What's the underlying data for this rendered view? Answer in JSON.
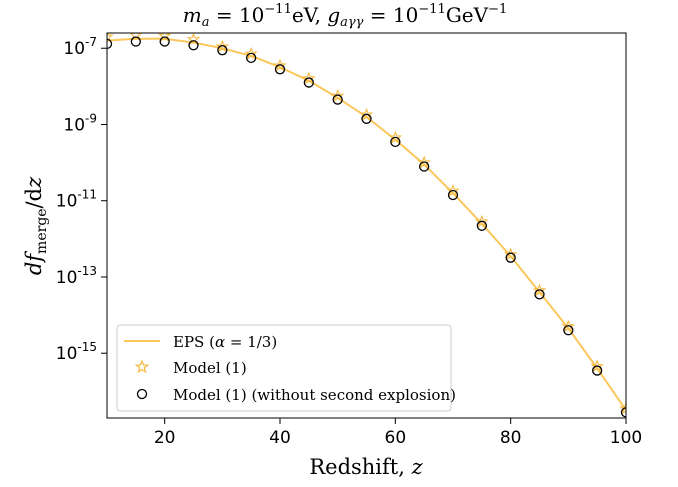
{
  "chart_data": {
    "type": "line",
    "title": "m_a = 10^{-11}eV, g_{aγγ} = 10^{-11}GeV^{-1}",
    "title_parts": {
      "mass_var": "m",
      "mass_sub": "a",
      "mass_eq": " = 10",
      "mass_exp": "−11",
      "mass_unit": "eV, ",
      "coupling_var": "g",
      "coupling_sub": "aγγ",
      "coupling_eq": " = 10",
      "coupling_exp": "−11",
      "coupling_unit": "GeV",
      "coupling_unit_exp": "−1"
    },
    "xlabel": "Redshift, z",
    "xlabel_parts": {
      "text": "Redshift, ",
      "var": "z"
    },
    "ylabel": "df_merge/dz",
    "ylabel_parts": {
      "d1": "d",
      "f": "f",
      "sub": "merge",
      "rest": "/d",
      "z": "z"
    },
    "xlim": [
      10,
      100
    ],
    "ylim_log10": [
      -16.7,
      -6.6
    ],
    "yscale": "log",
    "grid": false,
    "legend_position": "lower-left",
    "x_ticks": [
      {
        "value": 20,
        "label": "20"
      },
      {
        "value": 40,
        "label": "40"
      },
      {
        "value": 60,
        "label": "60"
      },
      {
        "value": 80,
        "label": "80"
      },
      {
        "value": 100,
        "label": "100"
      }
    ],
    "y_ticks": [
      {
        "exp": -7,
        "base": "10",
        "sup": "-7"
      },
      {
        "exp": -9,
        "base": "10",
        "sup": "-9"
      },
      {
        "exp": -11,
        "base": "10",
        "sup": "-11"
      },
      {
        "exp": -13,
        "base": "10",
        "sup": "-13"
      },
      {
        "exp": -15,
        "base": "10",
        "sup": "-15"
      }
    ],
    "colors": {
      "eps": "#fbc75b",
      "model": "#f5b940",
      "model_no_explosion": "#000000"
    },
    "series": [
      {
        "name": "EPS (α = 1/3)",
        "style": "line",
        "x": [
          10,
          15,
          20,
          25,
          30,
          35,
          40,
          45,
          50,
          55,
          60,
          65,
          70,
          75,
          80,
          85,
          90,
          95,
          100
        ],
        "y": [
          1.58e-07,
          1.78e-07,
          1.78e-07,
          1.41e-07,
          1e-07,
          6.3e-08,
          3.2e-08,
          1.41e-08,
          5e-09,
          1.58e-09,
          4e-10,
          8.9e-11,
          1.58e-11,
          2.5e-12,
          3.5e-13,
          4e-14,
          4.5e-15,
          4e-16,
          3.2e-17
        ]
      },
      {
        "name": "Model (1)",
        "style": "stars",
        "x": [
          10,
          15,
          20,
          25,
          30,
          35,
          40,
          45,
          50,
          55,
          60,
          65,
          70,
          75,
          80,
          85,
          90,
          95,
          100
        ],
        "y": [
          2e-07,
          2.2e-07,
          2.1e-07,
          1.7e-07,
          1.1e-07,
          7.1e-08,
          3.5e-08,
          1.6e-08,
          5.6e-09,
          1.8e-09,
          4.5e-10,
          1e-10,
          1.8e-11,
          2.8e-12,
          3.9e-13,
          4.4e-14,
          5e-15,
          4.5e-16,
          3.5e-17
        ]
      },
      {
        "name": "Model (1) (without second explosion)",
        "style": "circles",
        "x": [
          10,
          15,
          20,
          25,
          30,
          35,
          40,
          45,
          50,
          55,
          60,
          65,
          70,
          75,
          80,
          85,
          90,
          95,
          100
        ],
        "y": [
          1.3e-07,
          1.5e-07,
          1.5e-07,
          1.2e-07,
          8.9e-08,
          5.6e-08,
          2.8e-08,
          1.26e-08,
          4.5e-09,
          1.41e-09,
          3.5e-10,
          7.9e-11,
          1.41e-11,
          2.2e-12,
          3.2e-13,
          3.5e-14,
          4e-15,
          3.5e-16,
          2.8e-17
        ]
      }
    ],
    "legend": [
      {
        "label_parts": [
          "EPS ",
          "(",
          "α",
          " = 1/3)"
        ],
        "marker": "line"
      },
      {
        "label_parts": [
          "Model (1)"
        ],
        "marker": "star"
      },
      {
        "label_parts": [
          "Model (1) (without second explosion)"
        ],
        "marker": "circle"
      }
    ]
  }
}
